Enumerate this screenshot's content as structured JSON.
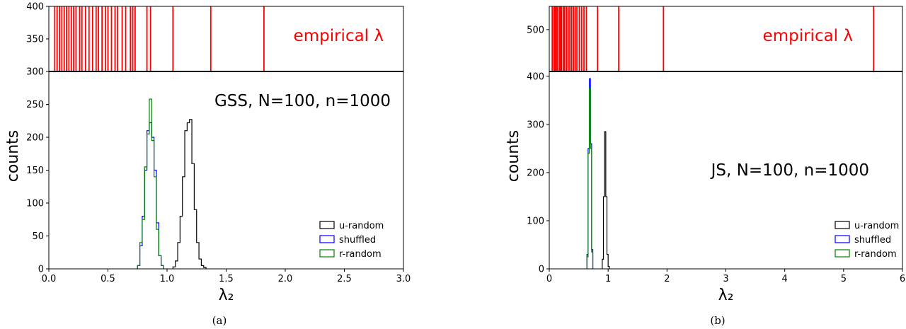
{
  "chart_data": [
    {
      "type": "histogram",
      "caption": "(a)",
      "ylabel": "counts",
      "xlabel": "λ₂",
      "annotation": "GSS, N=100, n=1000",
      "empirical_label": "empirical λ",
      "xlim": [
        0,
        3.0
      ],
      "ylim": [
        0,
        300
      ],
      "top_ylim": [
        300,
        400
      ],
      "xticks": [
        "0.0",
        "0.5",
        "1.0",
        "1.5",
        "2.0",
        "2.5",
        "3.0"
      ],
      "xtick_values": [
        0,
        0.5,
        1.0,
        1.5,
        2.0,
        2.5,
        3.0
      ],
      "yticks": [
        "0",
        "50",
        "100",
        "150",
        "200",
        "250"
      ],
      "ytick_values": [
        0,
        50,
        100,
        150,
        200,
        250
      ],
      "top_yticks": [
        "300",
        "350",
        "400"
      ],
      "top_ytick_values": [
        300,
        350,
        400
      ],
      "empirical_lambdas": [
        0.05,
        0.07,
        0.09,
        0.11,
        0.13,
        0.15,
        0.17,
        0.19,
        0.21,
        0.23,
        0.26,
        0.28,
        0.31,
        0.34,
        0.37,
        0.4,
        0.42,
        0.45,
        0.48,
        0.5,
        0.53,
        0.56,
        0.58,
        0.62,
        0.65,
        0.69,
        0.71,
        0.73,
        0.83,
        0.86,
        1.05,
        1.37,
        1.82
      ],
      "bin_width": 0.02,
      "series": [
        {
          "name": "u-random",
          "color": "#000000",
          "start": 1.05,
          "values": [
            3,
            12,
            40,
            80,
            140,
            210,
            222,
            227,
            160,
            90,
            40,
            15,
            5,
            2
          ]
        },
        {
          "name": "shuffled",
          "color": "#0000ff",
          "start": 0.75,
          "values": [
            5,
            35,
            80,
            150,
            210,
            222,
            200,
            150,
            70,
            20,
            5
          ]
        },
        {
          "name": "r-random",
          "color": "#008000",
          "start": 0.75,
          "values": [
            5,
            40,
            75,
            155,
            205,
            258,
            195,
            140,
            60,
            20,
            5
          ]
        }
      ]
    },
    {
      "type": "histogram",
      "caption": "(b)",
      "ylabel": "counts",
      "xlabel": "λ₂",
      "annotation": "JS, N=100, n=1000",
      "empirical_label": "empirical λ",
      "xlim": [
        0,
        6
      ],
      "ylim": [
        0,
        410
      ],
      "top_ylim": [
        410,
        550
      ],
      "xticks": [
        "0",
        "1",
        "2",
        "3",
        "4",
        "5",
        "6"
      ],
      "xtick_values": [
        0,
        1,
        2,
        3,
        4,
        5,
        6
      ],
      "yticks": [
        "0",
        "100",
        "200",
        "300",
        "400"
      ],
      "ytick_values": [
        0,
        100,
        200,
        300,
        400
      ],
      "top_yticks": [
        "500"
      ],
      "top_ytick_values": [
        500
      ],
      "empirical_lambdas": [
        0.05,
        0.08,
        0.1,
        0.12,
        0.14,
        0.17,
        0.19,
        0.21,
        0.24,
        0.26,
        0.29,
        0.32,
        0.35,
        0.38,
        0.41,
        0.44,
        0.47,
        0.51,
        0.55,
        0.59,
        0.63,
        0.82,
        1.18,
        1.94,
        5.51
      ],
      "bin_width": 0.02,
      "series": [
        {
          "name": "u-random",
          "color": "#000000",
          "start": 0.9,
          "values": [
            20,
            150,
            285,
            150,
            30,
            5
          ]
        },
        {
          "name": "shuffled",
          "color": "#0000ff",
          "start": 0.64,
          "values": [
            30,
            250,
            395,
            260,
            40
          ]
        },
        {
          "name": "r-random",
          "color": "#008000",
          "start": 0.64,
          "values": [
            25,
            240,
            375,
            250,
            35
          ]
        }
      ]
    }
  ]
}
